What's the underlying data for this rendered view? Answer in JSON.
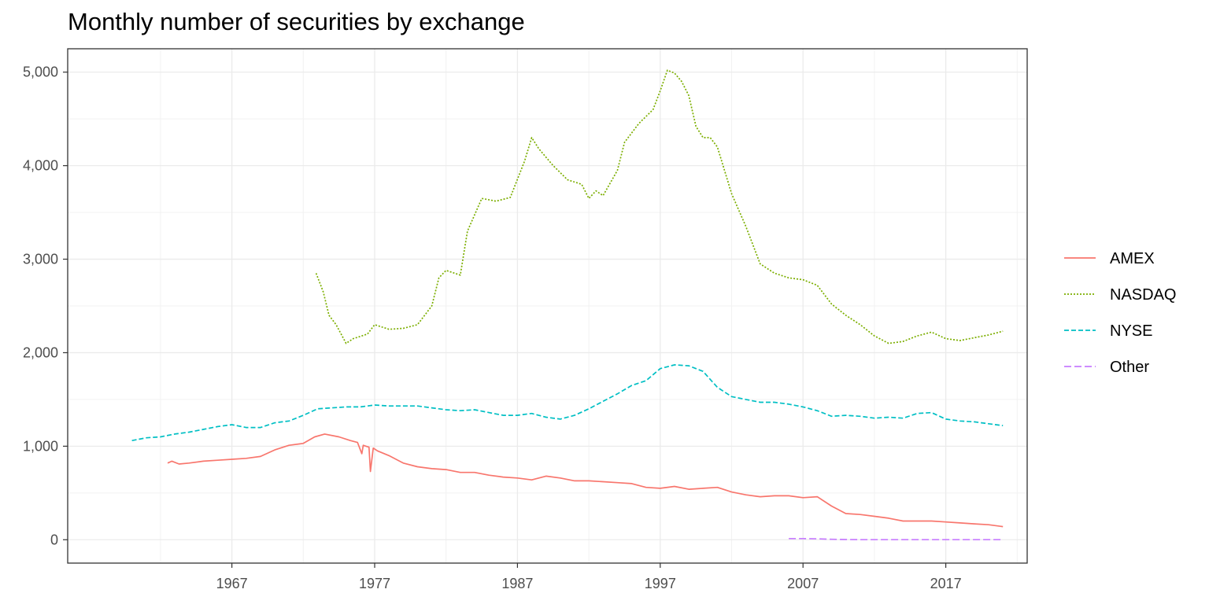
{
  "chart_data": {
    "type": "line",
    "title": "Monthly number of securities by exchange",
    "xlabel": "",
    "ylabel": "",
    "xlim": [
      1955.5,
      2022.7
    ],
    "ylim": [
      -250,
      5250
    ],
    "x_ticks": [
      1967,
      1977,
      1987,
      1997,
      2007,
      2017
    ],
    "x_tick_labels": [
      "1967",
      "1977",
      "1987",
      "1997",
      "2007",
      "2017"
    ],
    "y_ticks": [
      0,
      1000,
      2000,
      3000,
      4000,
      5000
    ],
    "y_tick_labels": [
      "0",
      "1,000",
      "2,000",
      "3,000",
      "4,000",
      "5,000"
    ],
    "grid": true,
    "legend_position": "right",
    "series": [
      {
        "name": "AMEX",
        "color": "#F8766D",
        "dash": "solid",
        "x": [
          1962.5,
          1962.8,
          1963.3,
          1964,
          1965,
          1966,
          1967,
          1968,
          1969,
          1970,
          1971,
          1972,
          1972.8,
          1973.5,
          1974.5,
          1975.3,
          1975.8,
          1976.1,
          1976.2,
          1976.4,
          1976.6,
          1976.7,
          1976.9,
          1977.2,
          1978,
          1979,
          1980,
          1981,
          1982,
          1983,
          1984,
          1985,
          1986,
          1987,
          1988,
          1989,
          1990,
          1991,
          1992,
          1993,
          1994,
          1995,
          1996,
          1997,
          1998,
          1999,
          2000,
          2001,
          2002,
          2003,
          2004,
          2005,
          2006,
          2007,
          2008,
          2009,
          2010,
          2011,
          2012,
          2013,
          2014,
          2015,
          2016,
          2017,
          2018,
          2019,
          2020,
          2021
        ],
        "values": [
          820,
          840,
          810,
          820,
          840,
          850,
          860,
          870,
          890,
          960,
          1010,
          1030,
          1100,
          1130,
          1100,
          1060,
          1040,
          920,
          1010,
          1000,
          990,
          730,
          980,
          950,
          900,
          820,
          780,
          760,
          750,
          720,
          720,
          690,
          670,
          660,
          640,
          680,
          660,
          630,
          630,
          620,
          610,
          600,
          560,
          550,
          570,
          540,
          550,
          560,
          510,
          480,
          460,
          470,
          470,
          450,
          460,
          360,
          280,
          270,
          250,
          230,
          200,
          200,
          200,
          190,
          180,
          170,
          160,
          140
        ]
      },
      {
        "name": "NASDAQ",
        "color": "#7CAE00",
        "dash": "dotted",
        "x": [
          1972.9,
          1973.4,
          1973.8,
          1974.3,
          1975.0,
          1975.5,
          1976.5,
          1977.0,
          1978.0,
          1979.0,
          1980.0,
          1981.0,
          1981.5,
          1982.0,
          1983.0,
          1983.5,
          1984.5,
          1985.5,
          1986.5,
          1987.5,
          1988.0,
          1988.5,
          1989.5,
          1990.5,
          1991.5,
          1992.0,
          1992.5,
          1993.0,
          1994.0,
          1994.5,
          1995.5,
          1996.5,
          1997.0,
          1997.5,
          1998.0,
          1998.5,
          1999.0,
          1999.5,
          2000.0,
          2000.5,
          2001.0,
          2002.0,
          2003.0,
          2004.0,
          2005.0,
          2006.0,
          2007.0,
          2008.0,
          2009.0,
          2010.0,
          2011.0,
          2012.0,
          2013.0,
          2014.0,
          2015.0,
          2016.0,
          2017.0,
          2018.0,
          2019.0,
          2020.0,
          2021.0
        ],
        "values": [
          2850,
          2650,
          2400,
          2300,
          2100,
          2150,
          2200,
          2300,
          2250,
          2260,
          2300,
          2500,
          2800,
          2880,
          2830,
          3300,
          3650,
          3620,
          3660,
          4050,
          4300,
          4180,
          4000,
          3850,
          3800,
          3650,
          3730,
          3680,
          3950,
          4250,
          4450,
          4600,
          4800,
          5020,
          4990,
          4900,
          4750,
          4420,
          4300,
          4300,
          4200,
          3700,
          3350,
          2950,
          2850,
          2800,
          2780,
          2720,
          2520,
          2400,
          2300,
          2180,
          2100,
          2120,
          2180,
          2220,
          2150,
          2130,
          2160,
          2190,
          2230
        ]
      },
      {
        "name": "NYSE",
        "color": "#00BFC4",
        "dash": "dashed",
        "x": [
          1960,
          1961,
          1962,
          1963,
          1964,
          1965,
          1966,
          1967,
          1968,
          1969,
          1970,
          1971,
          1972,
          1973,
          1974,
          1975,
          1976,
          1977,
          1978,
          1979,
          1980,
          1981,
          1982,
          1983,
          1984,
          1985,
          1986,
          1987,
          1988,
          1989,
          1990,
          1991,
          1992,
          1993,
          1994,
          1995,
          1996,
          1997,
          1998,
          1999,
          2000,
          2001,
          2002,
          2003,
          2004,
          2005,
          2006,
          2007,
          2008,
          2009,
          2010,
          2011,
          2012,
          2013,
          2014,
          2015,
          2016,
          2017,
          2018,
          2019,
          2020,
          2021
        ],
        "values": [
          1060,
          1090,
          1100,
          1130,
          1150,
          1180,
          1210,
          1230,
          1200,
          1200,
          1250,
          1270,
          1330,
          1400,
          1410,
          1420,
          1420,
          1440,
          1430,
          1430,
          1430,
          1410,
          1390,
          1380,
          1390,
          1360,
          1330,
          1330,
          1350,
          1310,
          1290,
          1330,
          1400,
          1480,
          1560,
          1650,
          1700,
          1830,
          1870,
          1860,
          1800,
          1630,
          1530,
          1500,
          1470,
          1470,
          1450,
          1420,
          1380,
          1320,
          1330,
          1320,
          1300,
          1310,
          1300,
          1350,
          1360,
          1290,
          1270,
          1260,
          1240,
          1220
        ]
      },
      {
        "name": "Other",
        "color": "#C77CFF",
        "dash": "longdash",
        "x": [
          2006,
          2007,
          2008,
          2009,
          2010,
          2011,
          2012,
          2013,
          2014,
          2015,
          2016,
          2017,
          2018,
          2019,
          2020,
          2021
        ],
        "values": [
          12,
          12,
          10,
          5,
          2,
          1,
          1,
          1,
          1,
          1,
          1,
          1,
          1,
          1,
          1,
          1
        ]
      }
    ]
  }
}
